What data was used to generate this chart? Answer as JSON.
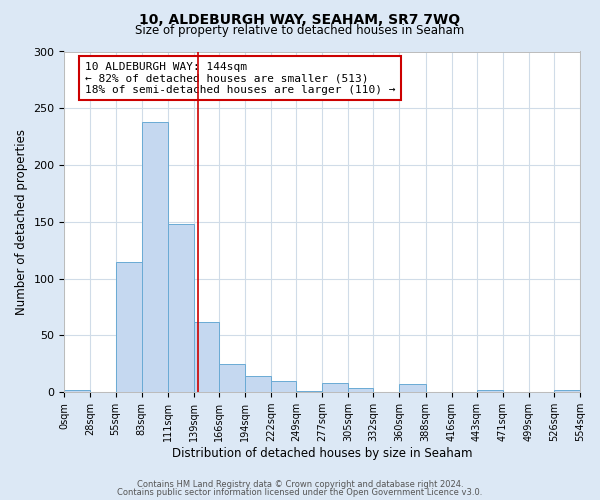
{
  "title": "10, ALDEBURGH WAY, SEAHAM, SR7 7WQ",
  "subtitle": "Size of property relative to detached houses in Seaham",
  "xlabel": "Distribution of detached houses by size in Seaham",
  "ylabel": "Number of detached properties",
  "bar_edges": [
    0,
    28,
    55,
    83,
    111,
    139,
    166,
    194,
    222,
    249,
    277,
    305,
    332,
    360,
    388,
    416,
    443,
    471,
    499,
    526,
    554
  ],
  "bar_heights": [
    2,
    0,
    115,
    238,
    148,
    62,
    25,
    14,
    10,
    1,
    8,
    4,
    0,
    7,
    0,
    0,
    2,
    0,
    0,
    2
  ],
  "bar_color": "#c5d8f0",
  "bar_edgecolor": "#6aaad4",
  "property_line_x": 144,
  "property_line_color": "#cc0000",
  "annotation_box_text": "10 ALDEBURGH WAY: 144sqm\n← 82% of detached houses are smaller (513)\n18% of semi-detached houses are larger (110) →",
  "ylim": [
    0,
    300
  ],
  "yticks": [
    0,
    50,
    100,
    150,
    200,
    250,
    300
  ],
  "footer_line1": "Contains HM Land Registry data © Crown copyright and database right 2024.",
  "footer_line2": "Contains public sector information licensed under the Open Government Licence v3.0.",
  "fig_bg_color": "#dce8f5",
  "plot_bg_color": "#ffffff",
  "grid_color": "#d0dce8",
  "title_fontsize": 10,
  "subtitle_fontsize": 8.5,
  "tick_label_fontsize": 7,
  "axis_label_fontsize": 8.5,
  "footer_fontsize": 6,
  "annotation_fontsize": 8,
  "annotation_box_color": "#ffffff",
  "annotation_box_edgecolor": "#cc0000"
}
